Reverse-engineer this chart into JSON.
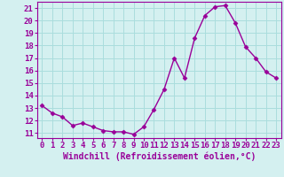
{
  "x": [
    0,
    1,
    2,
    3,
    4,
    5,
    6,
    7,
    8,
    9,
    10,
    11,
    12,
    13,
    14,
    15,
    16,
    17,
    18,
    19,
    20,
    21,
    22,
    23
  ],
  "y": [
    13.2,
    12.6,
    12.3,
    11.6,
    11.8,
    11.5,
    11.2,
    11.1,
    11.1,
    10.9,
    11.5,
    12.9,
    14.5,
    17.0,
    15.4,
    18.6,
    20.4,
    21.1,
    21.2,
    19.8,
    17.9,
    17.0,
    15.9,
    15.4
  ],
  "line_color": "#990099",
  "marker": "D",
  "marker_size": 2.5,
  "xlabel": "Windchill (Refroidissement éolien,°C)",
  "xlabel_fontsize": 7,
  "ylabel_ticks": [
    11,
    12,
    13,
    14,
    15,
    16,
    17,
    18,
    19,
    20,
    21
  ],
  "xlim": [
    -0.5,
    23.5
  ],
  "ylim": [
    10.6,
    21.5
  ],
  "bg_color": "#d4f0f0",
  "grid_color": "#aadddd",
  "tick_fontsize": 6.5,
  "linewidth": 1.0
}
